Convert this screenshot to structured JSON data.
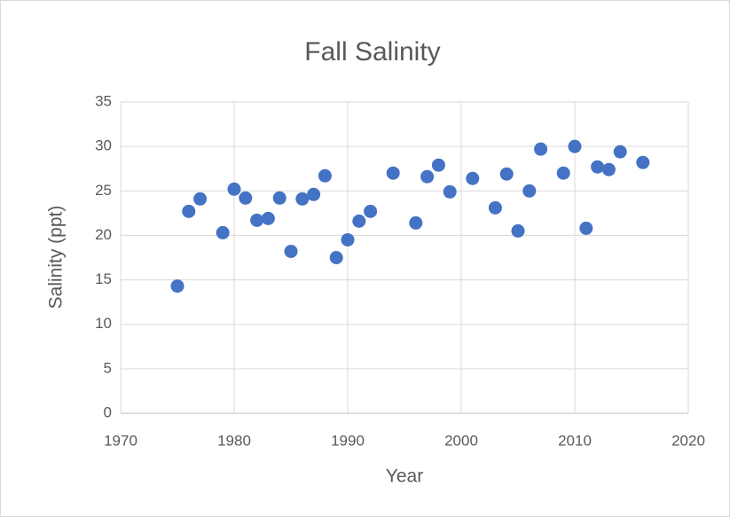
{
  "chart_data": {
    "type": "scatter",
    "title": "Fall Salinity",
    "x_label": "Year",
    "y_label": "Salinity (ppt)",
    "series": [
      {
        "name": "Fall Salinity",
        "color": "#4472c4",
        "x": [
          1975,
          1976,
          1977,
          1979,
          1980,
          1981,
          1982,
          1983,
          1984,
          1985,
          1986,
          1987,
          1988,
          1989,
          1990,
          1991,
          1992,
          1994,
          1996,
          1997,
          1998,
          1999,
          2001,
          2003,
          2004,
          2005,
          2006,
          2007,
          2009,
          2010,
          2011,
          2012,
          2013,
          2014,
          2016
        ],
        "values": [
          14.3,
          22.7,
          24.1,
          20.3,
          25.2,
          24.2,
          21.7,
          21.9,
          24.2,
          18.2,
          24.1,
          24.6,
          26.7,
          17.5,
          19.5,
          21.6,
          22.7,
          27.0,
          21.4,
          26.6,
          27.9,
          24.9,
          26.4,
          23.1,
          26.9,
          20.5,
          25.0,
          29.7,
          27.0,
          30.0,
          20.8,
          27.7,
          27.4,
          29.4,
          28.2
        ]
      }
    ],
    "xlim": [
      1970,
      2020
    ],
    "xticks": [
      1970,
      1980,
      1990,
      2000,
      2010,
      2020
    ],
    "ylim": [
      0,
      35
    ],
    "yticks": [
      0,
      5,
      10,
      15,
      20,
      25,
      30,
      35
    ],
    "grid": true
  }
}
